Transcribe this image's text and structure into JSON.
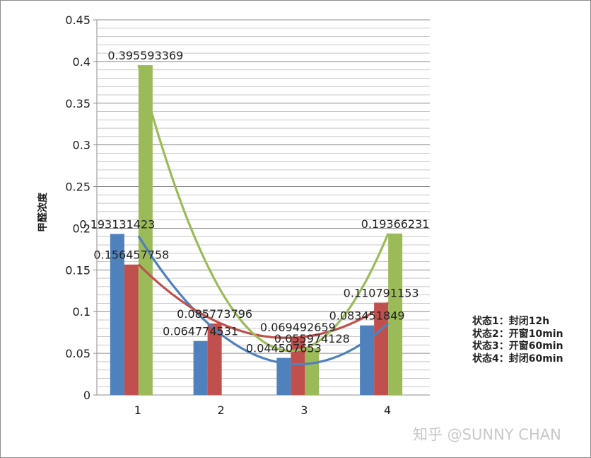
{
  "chart_data": {
    "type": "bar",
    "categories": [
      "1",
      "2",
      "3",
      "4"
    ],
    "ylabel": "甲醛浓度",
    "xlabel": "",
    "ylim": [
      0,
      0.45
    ],
    "yticks": [
      "0",
      "0.05",
      "0.1",
      "0.15",
      "0.2",
      "0.25",
      "0.3",
      "0.35",
      "0.4",
      "0.45"
    ],
    "grid": true,
    "series": [
      {
        "color": "#4f81bd",
        "values": [
          0.193131423,
          0.064774531,
          0.044507653,
          0.083451849
        ],
        "labels": [
          "0.193131423",
          "0.064774531",
          "0.044507653",
          "0.083451849"
        ]
      },
      {
        "color": "#c0504d",
        "values": [
          0.156457758,
          0.085773796,
          0.069492659,
          0.110791153
        ],
        "labels": [
          "0.156457758",
          "0.085773796",
          "0.069492659",
          "0.110791153"
        ]
      },
      {
        "color": "#9bbb59",
        "values": [
          0.395593369,
          0.0,
          0.055974128,
          0.19366231
        ],
        "labels": [
          "0.395593369",
          "",
          "0.055974128",
          "0.19366231"
        ]
      }
    ],
    "trendline": "polynomial",
    "legend_position": "right",
    "legend": [
      "状态1：封闭12h",
      "状态2：开窗10min",
      "状态3：开窗60min",
      "状态4：封闭60min"
    ]
  },
  "watermark": "知乎 @SUNNY CHAN"
}
